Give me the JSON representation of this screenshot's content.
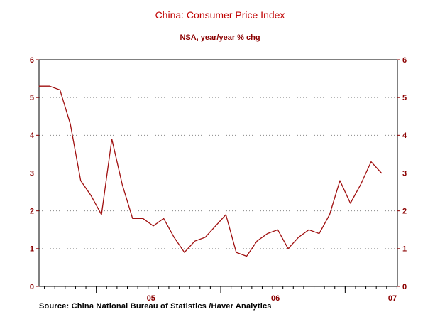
{
  "chart_data": {
    "type": "line",
    "title": "China: Consumer Price Index",
    "subtitle": "NSA, year/year % chg",
    "source": "Source:   China National Bureau of Statistics /Haver Analytics",
    "ylim": [
      0,
      6
    ],
    "yticks": [
      0,
      1,
      2,
      3,
      4,
      5,
      6
    ],
    "gridlines": [
      1,
      2,
      3,
      4,
      5
    ],
    "x_axis": {
      "min": 2004.54,
      "max": 2007.42,
      "major_ticks": [
        2005,
        2006,
        2007
      ],
      "labels": [
        {
          "text": "05",
          "at": 2005.44
        },
        {
          "text": "06",
          "at": 2006.44
        },
        {
          "text": "07",
          "at": 2007.38
        }
      ]
    },
    "series": [
      {
        "name": "China CPI, NSA, year/year % chg",
        "color": "#a01010",
        "months": [
          "2004-07",
          "2004-08",
          "2004-09",
          "2004-10",
          "2004-11",
          "2004-12",
          "2005-01",
          "2005-02",
          "2005-03",
          "2005-04",
          "2005-05",
          "2005-06",
          "2005-07",
          "2005-08",
          "2005-09",
          "2005-10",
          "2005-11",
          "2005-12",
          "2006-01",
          "2006-02",
          "2006-03",
          "2006-04",
          "2006-05",
          "2006-06",
          "2006-07",
          "2006-08",
          "2006-09",
          "2006-10",
          "2006-11",
          "2006-12",
          "2007-01",
          "2007-02",
          "2007-03",
          "2007-04"
        ],
        "values": [
          5.3,
          5.3,
          5.2,
          4.3,
          2.8,
          2.4,
          1.9,
          3.9,
          2.7,
          1.8,
          1.8,
          1.6,
          1.8,
          1.3,
          0.9,
          1.2,
          1.3,
          1.6,
          1.9,
          0.9,
          0.8,
          1.2,
          1.4,
          1.5,
          1.0,
          1.3,
          1.5,
          1.4,
          1.9,
          2.8,
          2.2,
          2.7,
          3.3,
          3.0
        ]
      }
    ],
    "colors": {
      "line": "#a01010",
      "axis_text": "#8b0000",
      "title": "#c00000",
      "subtitle": "#8b0000",
      "grid": "#8a8a8a",
      "frame": "#000000",
      "source_text": "#000000"
    }
  }
}
